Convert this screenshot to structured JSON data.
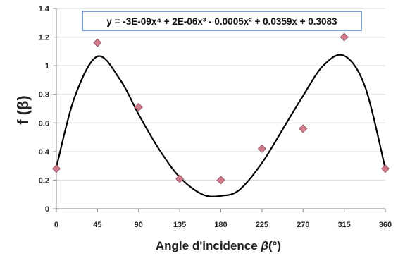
{
  "chart_data": {
    "type": "scatter",
    "xlabel_main": "Angle d'incidence ",
    "xlabel_symbol": "β",
    "xlabel_unit": "(°)",
    "ylabel_main": "f (",
    "ylabel_symbol": "β",
    "ylabel_close": ")",
    "xlim": [
      0,
      360
    ],
    "ylim": [
      0,
      1.4
    ],
    "xticks": [
      0,
      45,
      90,
      135,
      180,
      225,
      270,
      315,
      360
    ],
    "yticks": [
      0,
      0.2,
      0.4,
      0.6,
      0.8,
      1,
      1.2,
      1.4
    ],
    "grid": "horizontal",
    "points": {
      "x": [
        0,
        45,
        90,
        135,
        180,
        225,
        270,
        315,
        360
      ],
      "y": [
        0.28,
        1.16,
        0.71,
        0.21,
        0.2,
        0.42,
        0.56,
        1.2,
        0.28
      ]
    },
    "trendline": {
      "equation": "y = -3E-09x⁴ + 2E-06x³ - 0.0005x² + 0.0359x + 0.3083"
    },
    "colors": {
      "marker": "#d07a8a",
      "marker_edge": "#8a4f5c",
      "curve": "#000000",
      "grid": "#d9d9d9",
      "equation_border": "#4f81bd"
    }
  }
}
